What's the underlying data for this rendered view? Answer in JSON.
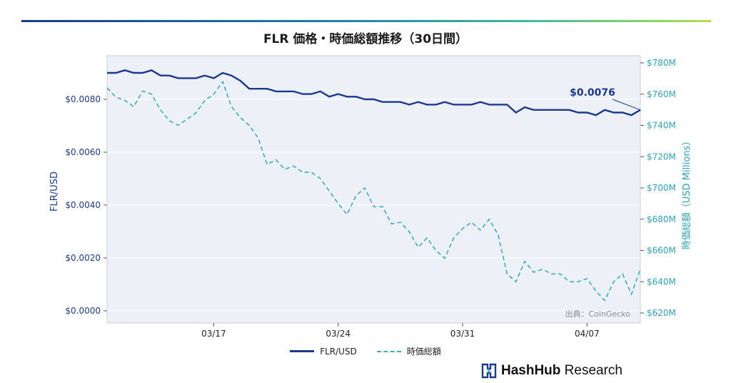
{
  "title": "FLR 価格・時価総額推移（30日間）",
  "source": "出典：CoinGecko",
  "brand": {
    "bold": "HashHub",
    "regular": " Research"
  },
  "colors": {
    "price": "#1b3a8f",
    "cap": "#3aaebd",
    "plot_bg": "#edf0f7",
    "topbar_start": "#1b3a8f",
    "topbar_end": "#b5e04a"
  },
  "chart_data": {
    "type": "line",
    "title": "FLR 価格・時価総額推移（30日間）",
    "xlabel": "",
    "x_ticks": [
      "03/17",
      "03/24",
      "03/31",
      "04/07"
    ],
    "y_left": {
      "label": "FLR/USD",
      "ticks": [
        "$0.0000",
        "$0.0020",
        "$0.0040",
        "$0.0060",
        "$0.0080"
      ],
      "range": [
        0,
        0.0095
      ]
    },
    "y_right": {
      "label": "時価総額（USD Millions）",
      "ticks": [
        "$620M",
        "$640M",
        "$660M",
        "$680M",
        "$700M",
        "$720M",
        "$740M",
        "$760M",
        "$780M"
      ],
      "range": [
        620,
        780
      ]
    },
    "annotation": "$0.0076",
    "legend": {
      "placement": "bottom-center"
    },
    "series": [
      {
        "name": "FLR/USD",
        "axis": "left",
        "style": "solid",
        "x": [
          0,
          0.5,
          1,
          1.5,
          2,
          2.5,
          3,
          3.5,
          4,
          4.5,
          5,
          5.5,
          6,
          6.5,
          7,
          7.5,
          8,
          8.5,
          9,
          9.5,
          10,
          10.5,
          11,
          11.5,
          12,
          12.5,
          13,
          13.5,
          14,
          14.5,
          15,
          15.5,
          16,
          16.5,
          17,
          17.5,
          18,
          18.5,
          19,
          19.5,
          20,
          20.5,
          21,
          21.5,
          22,
          22.5,
          23,
          23.5,
          24,
          24.5,
          25,
          25.5,
          26,
          26.5,
          27,
          27.5,
          28,
          28.5,
          29,
          29.5,
          30
        ],
        "values": [
          0.009,
          0.009,
          0.0091,
          0.009,
          0.009,
          0.0091,
          0.0089,
          0.0089,
          0.0088,
          0.0088,
          0.0088,
          0.0089,
          0.0088,
          0.009,
          0.0089,
          0.0087,
          0.0084,
          0.0084,
          0.0084,
          0.0083,
          0.0083,
          0.0083,
          0.0082,
          0.0082,
          0.0083,
          0.0081,
          0.0082,
          0.0081,
          0.0081,
          0.008,
          0.008,
          0.0079,
          0.0079,
          0.0079,
          0.0078,
          0.0079,
          0.0078,
          0.0078,
          0.0079,
          0.0078,
          0.0078,
          0.0078,
          0.0079,
          0.0078,
          0.0078,
          0.0078,
          0.0075,
          0.0077,
          0.0076,
          0.0076,
          0.0076,
          0.0076,
          0.0076,
          0.0075,
          0.0075,
          0.0074,
          0.0076,
          0.0075,
          0.0075,
          0.0074,
          0.0076
        ]
      },
      {
        "name": "時価総額",
        "axis": "right",
        "style": "dashed",
        "x": [
          0,
          0.5,
          1,
          1.5,
          2,
          2.5,
          3,
          3.5,
          4,
          4.5,
          5,
          5.5,
          6,
          6.5,
          7,
          7.5,
          8,
          8.5,
          9,
          9.5,
          10,
          10.5,
          11,
          11.5,
          12,
          12.5,
          13,
          13.5,
          14,
          14.5,
          15,
          15.5,
          16,
          16.5,
          17,
          17.5,
          18,
          18.5,
          19,
          19.5,
          20,
          20.5,
          21,
          21.5,
          22,
          22.5,
          23,
          23.5,
          24,
          24.5,
          25,
          25.5,
          26,
          26.5,
          27,
          27.5,
          28,
          28.5,
          29,
          29.5,
          30
        ],
        "values": [
          764,
          758,
          756,
          752,
          762,
          760,
          750,
          743,
          740,
          744,
          748,
          756,
          760,
          768,
          752,
          745,
          740,
          732,
          715,
          718,
          712,
          714,
          710,
          710,
          706,
          698,
          690,
          683,
          695,
          700,
          688,
          688,
          677,
          678,
          672,
          662,
          668,
          660,
          655,
          668,
          674,
          678,
          673,
          680,
          670,
          645,
          640,
          653,
          646,
          648,
          645,
          645,
          640,
          640,
          642,
          634,
          628,
          640,
          645,
          632,
          648
        ]
      }
    ]
  }
}
